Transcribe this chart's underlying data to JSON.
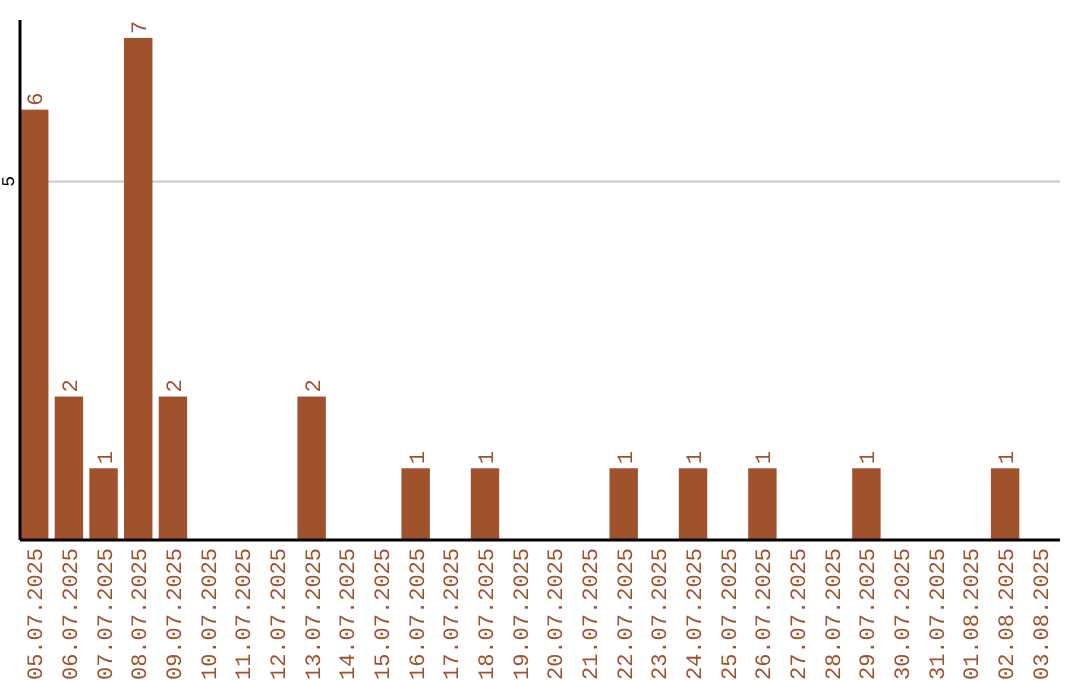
{
  "chart_data": {
    "type": "bar",
    "categories": [
      "05.07.2025",
      "06.07.2025",
      "07.07.2025",
      "08.07.2025",
      "09.07.2025",
      "10.07.2025",
      "11.07.2025",
      "12.07.2025",
      "13.07.2025",
      "14.07.2025",
      "15.07.2025",
      "16.07.2025",
      "17.07.2025",
      "18.07.2025",
      "19.07.2025",
      "20.07.2025",
      "21.07.2025",
      "22.07.2025",
      "23.07.2025",
      "24.07.2025",
      "25.07.2025",
      "26.07.2025",
      "27.07.2025",
      "28.07.2025",
      "29.07.2025",
      "30.07.2025",
      "31.07.2025",
      "01.08.2025",
      "02.08.2025",
      "03.08.2025"
    ],
    "values": [
      6,
      2,
      1,
      7,
      2,
      0,
      0,
      0,
      2,
      0,
      0,
      1,
      0,
      1,
      0,
      0,
      0,
      1,
      0,
      1,
      0,
      1,
      0,
      0,
      1,
      0,
      0,
      0,
      1,
      0
    ],
    "value_labels": [
      "6",
      "2",
      "1",
      "7",
      "2",
      null,
      null,
      null,
      "2",
      null,
      null,
      "1",
      null,
      "1",
      null,
      null,
      null,
      "1",
      null,
      "1",
      null,
      "1",
      null,
      null,
      "1",
      null,
      null,
      null,
      "1",
      null
    ],
    "color": "#a0522d",
    "ylim": [
      0,
      7.25
    ],
    "yticks": [
      5
    ],
    "grid": "y"
  }
}
